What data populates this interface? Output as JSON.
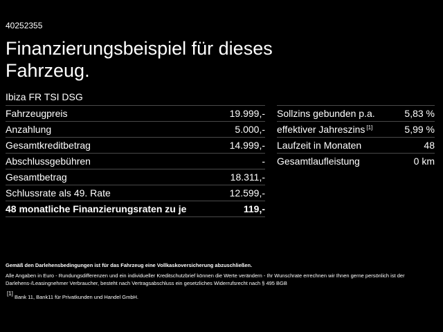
{
  "id": "40252355",
  "title": "Finanzierungsbeispiel für dieses Fahrzeug.",
  "model": "Ibiza FR TSI DSG",
  "left_table": {
    "rows": [
      [
        "Fahrzeugpreis",
        "19.999,-"
      ],
      [
        "Anzahlung",
        "5.000,-"
      ],
      [
        "Gesamtkreditbetrag",
        "14.999,-"
      ],
      [
        "Abschlussgebühren",
        "-"
      ],
      [
        "Gesamtbetrag",
        "18.311,-"
      ],
      [
        "Schlussrate als 49. Rate",
        "12.599,-"
      ],
      [
        "48 monatliche Finanzierungsraten zu je",
        "119,-"
      ]
    ]
  },
  "right_table": {
    "rows": [
      [
        "Sollzins gebunden p.a.",
        "5,83 %"
      ],
      [
        "effektiver Jahreszins",
        "5,99 %"
      ],
      [
        "Laufzeit in Monaten",
        "48"
      ],
      [
        "Gesamtlaufleistung",
        "0 km"
      ]
    ],
    "footnote_marker": "[1]"
  },
  "notes": {
    "insurance": "Gemäß den Darlehensbedingungen ist für das Fahrzeug eine Vollkaskoversicherung abzuschließen.",
    "disclaimer": "Alle Angaben in Euro - Rundungsdifferenzen und ein individueller Kreditschutzbrief können die Werte verändern - Ihr Wunschrate errechnen wir Ihnen gerne persönlich ist der Darlehens-/Leasingnehmer Verbraucher, besteht nach Vertragsabschluss ein gesetzliches Widerrufsrecht nach § 495 BGB",
    "footnote_marker": "[1]",
    "footnote": "Bank 11, Bank11 für Privatkunden und Handel GmbH."
  }
}
